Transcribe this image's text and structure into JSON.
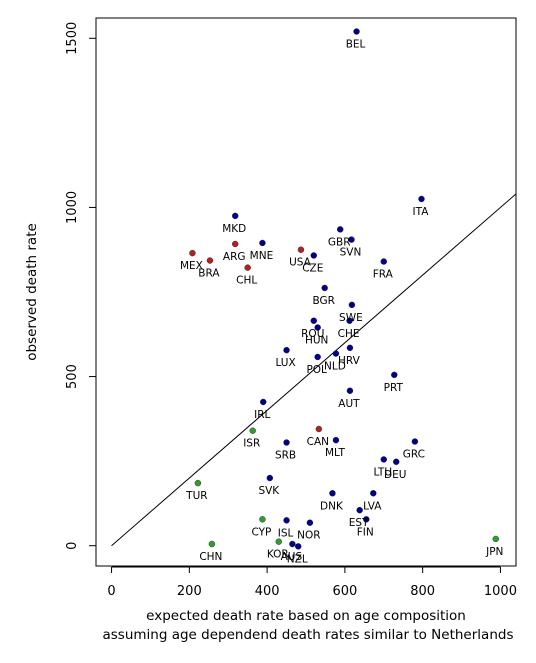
{
  "chart_data": {
    "type": "scatter",
    "xlabel": [
      "expected death rate based on age composition",
      "assuming age dependend death rates similar to Netherlands"
    ],
    "ylabel": "observed death rate",
    "xlim": [
      -40,
      1040
    ],
    "ylim": [
      -60,
      1560
    ],
    "xticks": [
      0,
      200,
      400,
      600,
      800,
      1000
    ],
    "yticks": [
      0,
      500,
      1000,
      1500
    ],
    "grid": false,
    "reference_line": {
      "slope": 1,
      "intercept": 0,
      "from_x": 0
    },
    "colors": {
      "blue": "#00008b",
      "red": "#b22222",
      "green": "#2e9e2e"
    },
    "points": [
      {
        "label": "BEL",
        "x": 630,
        "y": 1520,
        "color": "blue"
      },
      {
        "label": "ITA",
        "x": 797,
        "y": 1025,
        "color": "blue"
      },
      {
        "label": "MKD",
        "x": 318,
        "y": 975,
        "color": "blue"
      },
      {
        "label": "GBR",
        "x": 588,
        "y": 935,
        "color": "blue"
      },
      {
        "label": "SVN",
        "x": 617,
        "y": 905,
        "color": "blue"
      },
      {
        "label": "MNE",
        "x": 388,
        "y": 895,
        "color": "blue"
      },
      {
        "label": "ARG",
        "x": 318,
        "y": 892,
        "color": "red"
      },
      {
        "label": "USA",
        "x": 487,
        "y": 875,
        "color": "red"
      },
      {
        "label": "MEX",
        "x": 208,
        "y": 865,
        "color": "red"
      },
      {
        "label": "CZE",
        "x": 520,
        "y": 858,
        "color": "blue"
      },
      {
        "label": "BRA",
        "x": 253,
        "y": 843,
        "color": "red"
      },
      {
        "label": "FRA",
        "x": 700,
        "y": 840,
        "color": "blue"
      },
      {
        "label": "CHL",
        "x": 350,
        "y": 822,
        "color": "red"
      },
      {
        "label": "BGR",
        "x": 548,
        "y": 762,
        "color": "blue"
      },
      {
        "label": "SWE",
        "x": 618,
        "y": 712,
        "color": "blue"
      },
      {
        "label": "ROU",
        "x": 520,
        "y": 665,
        "color": "blue"
      },
      {
        "label": "CHE",
        "x": 612,
        "y": 665,
        "color": "blue"
      },
      {
        "label": "HUN",
        "x": 530,
        "y": 645,
        "color": "blue"
      },
      {
        "label": "HRV",
        "x": 613,
        "y": 585,
        "color": "blue"
      },
      {
        "label": "LUX",
        "x": 450,
        "y": 578,
        "color": "blue"
      },
      {
        "label": "NLD",
        "x": 577,
        "y": 568,
        "color": "blue"
      },
      {
        "label": "POL",
        "x": 530,
        "y": 558,
        "color": "blue"
      },
      {
        "label": "PRT",
        "x": 727,
        "y": 505,
        "color": "blue"
      },
      {
        "label": "AUT",
        "x": 613,
        "y": 458,
        "color": "blue"
      },
      {
        "label": "IRL",
        "x": 390,
        "y": 425,
        "color": "blue"
      },
      {
        "label": "CAN",
        "x": 533,
        "y": 345,
        "color": "red"
      },
      {
        "label": "ISR",
        "x": 363,
        "y": 340,
        "color": "green"
      },
      {
        "label": "MLT",
        "x": 577,
        "y": 312,
        "color": "blue"
      },
      {
        "label": "GRC",
        "x": 780,
        "y": 308,
        "color": "blue"
      },
      {
        "label": "SRB",
        "x": 450,
        "y": 305,
        "color": "blue"
      },
      {
        "label": "LTU",
        "x": 700,
        "y": 255,
        "color": "blue"
      },
      {
        "label": "DEU",
        "x": 732,
        "y": 248,
        "color": "blue"
      },
      {
        "label": "SVK",
        "x": 407,
        "y": 200,
        "color": "blue"
      },
      {
        "label": "TUR",
        "x": 222,
        "y": 185,
        "color": "green"
      },
      {
        "label": "DNK",
        "x": 568,
        "y": 155,
        "color": "blue"
      },
      {
        "label": "LVA",
        "x": 673,
        "y": 155,
        "color": "blue"
      },
      {
        "label": "EST",
        "x": 638,
        "y": 105,
        "color": "blue"
      },
      {
        "label": "FIN",
        "x": 655,
        "y": 78,
        "color": "blue"
      },
      {
        "label": "CYP",
        "x": 388,
        "y": 78,
        "color": "green"
      },
      {
        "label": "ISL",
        "x": 450,
        "y": 75,
        "color": "blue"
      },
      {
        "label": "NOR",
        "x": 510,
        "y": 68,
        "color": "blue"
      },
      {
        "label": "KOR",
        "x": 430,
        "y": 12,
        "color": "green"
      },
      {
        "label": "AUS",
        "x": 465,
        "y": 5,
        "color": "blue"
      },
      {
        "label": "NZL",
        "x": 480,
        "y": -2,
        "color": "blue"
      },
      {
        "label": "CHN",
        "x": 258,
        "y": 5,
        "color": "green"
      },
      {
        "label": "JPN",
        "x": 988,
        "y": 20,
        "color": "green"
      }
    ]
  }
}
